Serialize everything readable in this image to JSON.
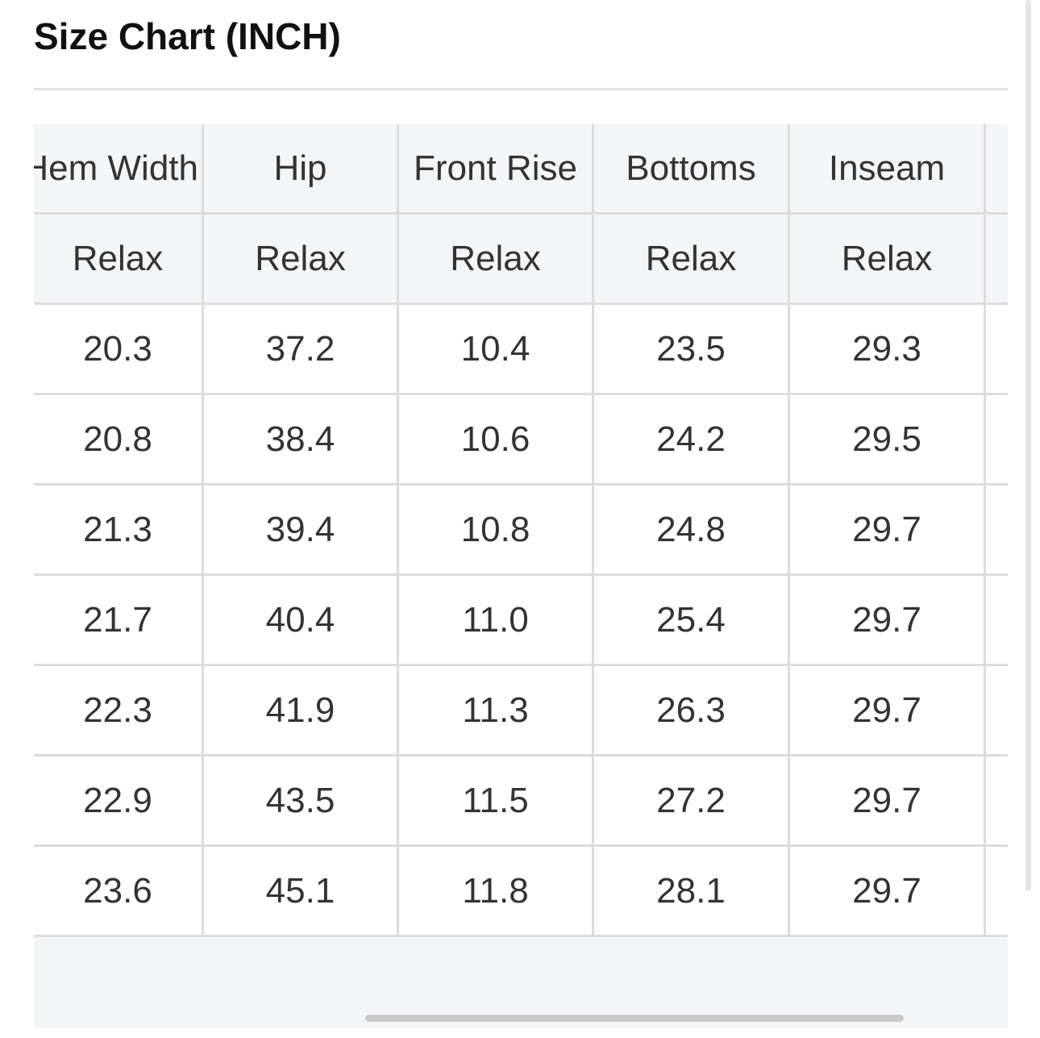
{
  "header": {
    "title": "Size Chart (INCH)"
  },
  "table": {
    "columns": [
      "Hem Width",
      "Hip",
      "Front Rise",
      "Bottoms",
      "Inseam"
    ],
    "subheaders": [
      "Relax",
      "Relax",
      "Relax",
      "Relax",
      "Relax"
    ],
    "rows": [
      [
        "20.3",
        "37.2",
        "10.4",
        "23.5",
        "29.3"
      ],
      [
        "20.8",
        "38.4",
        "10.6",
        "24.2",
        "29.5"
      ],
      [
        "21.3",
        "39.4",
        "10.8",
        "24.8",
        "29.7"
      ],
      [
        "21.7",
        "40.4",
        "11.0",
        "25.4",
        "29.7"
      ],
      [
        "22.3",
        "41.9",
        "11.3",
        "26.3",
        "29.7"
      ],
      [
        "22.9",
        "43.5",
        "11.5",
        "27.2",
        "29.7"
      ],
      [
        "23.6",
        "45.1",
        "11.8",
        "28.1",
        "29.7"
      ]
    ]
  }
}
